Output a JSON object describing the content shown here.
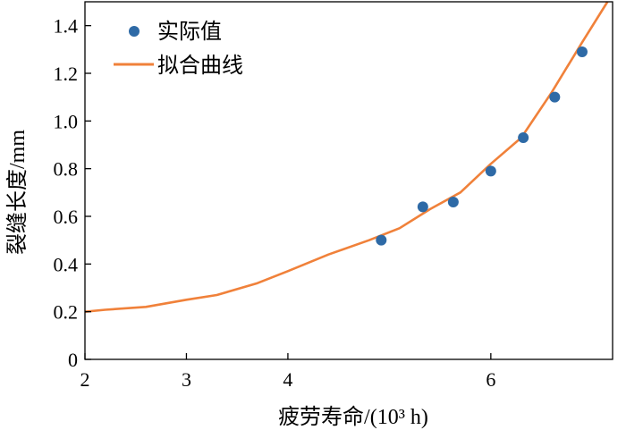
{
  "chart_data": {
    "type": "scatter",
    "xlabel": "疲劳寿命/(10³ h)",
    "ylabel": "裂缝长度/mm",
    "xlim": [
      2,
      7.2
    ],
    "ylim": [
      0,
      1.5
    ],
    "x_ticks": [
      {
        "value": 2,
        "label": "2"
      },
      {
        "value": 3,
        "label": "3"
      },
      {
        "value": 4,
        "label": "4"
      },
      {
        "value": 6,
        "label": "6"
      }
    ],
    "y_ticks": [
      {
        "value": 0,
        "label": "0"
      },
      {
        "value": 0.2,
        "label": "0.2"
      },
      {
        "value": 0.4,
        "label": "0.4"
      },
      {
        "value": 0.6,
        "label": "0.6"
      },
      {
        "value": 0.8,
        "label": "0.8"
      },
      {
        "value": 1.0,
        "label": "1.0"
      },
      {
        "value": 1.2,
        "label": "1.2"
      },
      {
        "value": 1.4,
        "label": "1.4"
      }
    ],
    "grid": false,
    "legend_position": "top-left",
    "series": [
      {
        "name": "实际值",
        "kind": "scatter",
        "color": "#2e6aa6",
        "points": [
          {
            "x": 4.92,
            "y": 0.5
          },
          {
            "x": 5.33,
            "y": 0.64
          },
          {
            "x": 5.63,
            "y": 0.66
          },
          {
            "x": 6.0,
            "y": 0.79
          },
          {
            "x": 6.32,
            "y": 0.93
          },
          {
            "x": 6.63,
            "y": 1.1
          },
          {
            "x": 6.9,
            "y": 1.29
          }
        ]
      },
      {
        "name": "拟合曲线",
        "kind": "line",
        "color": "#f0813a",
        "points": [
          {
            "x": 2.0,
            "y": 0.2
          },
          {
            "x": 2.2,
            "y": 0.208
          },
          {
            "x": 2.6,
            "y": 0.22
          },
          {
            "x": 3.0,
            "y": 0.25
          },
          {
            "x": 3.3,
            "y": 0.27
          },
          {
            "x": 3.7,
            "y": 0.32
          },
          {
            "x": 4.0,
            "y": 0.37
          },
          {
            "x": 4.4,
            "y": 0.44
          },
          {
            "x": 4.8,
            "y": 0.5
          },
          {
            "x": 5.1,
            "y": 0.55
          },
          {
            "x": 5.4,
            "y": 0.63
          },
          {
            "x": 5.7,
            "y": 0.7
          },
          {
            "x": 6.0,
            "y": 0.82
          },
          {
            "x": 6.3,
            "y": 0.93
          },
          {
            "x": 6.6,
            "y": 1.12
          },
          {
            "x": 6.9,
            "y": 1.33
          },
          {
            "x": 7.15,
            "y": 1.5
          }
        ]
      }
    ]
  }
}
